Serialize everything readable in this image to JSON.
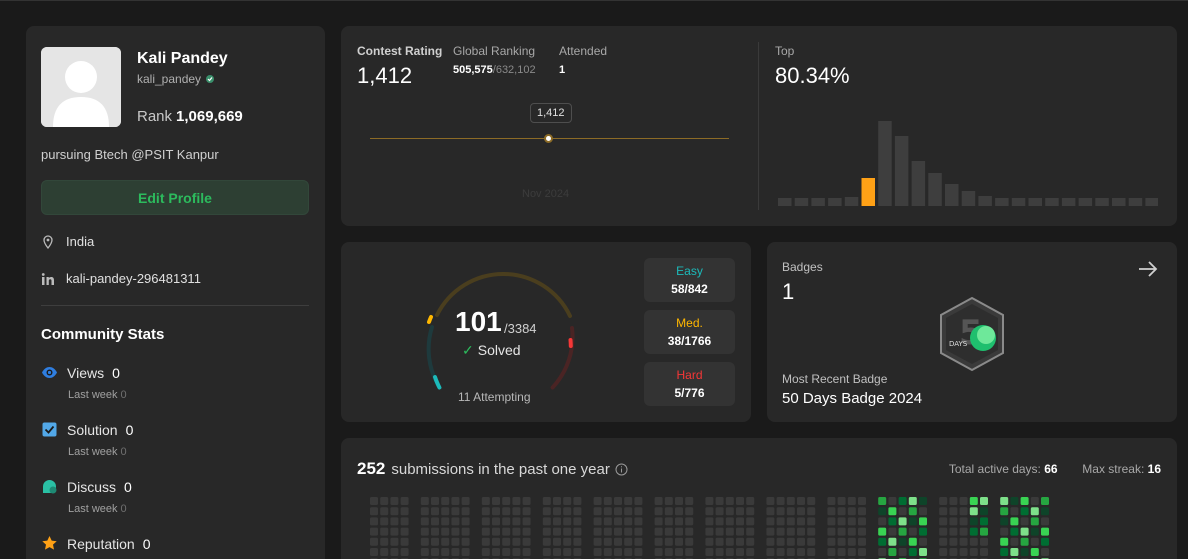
{
  "profile": {
    "name": "Kali Pandey",
    "handle": "kali_pandey",
    "rank_label": "Rank",
    "rank_value": "1,069,669",
    "bio": "pursuing Btech @PSIT Kanpur",
    "edit_label": "Edit Profile",
    "location": "India",
    "linkedin": "kali-pandey-296481311"
  },
  "community": {
    "title": "Community Stats",
    "items": [
      {
        "label": "Views",
        "value": "0",
        "sub_label": "Last week",
        "sub_value": "0"
      },
      {
        "label": "Solution",
        "value": "0",
        "sub_label": "Last week",
        "sub_value": "0"
      },
      {
        "label": "Discuss",
        "value": "0",
        "sub_label": "Last week",
        "sub_value": "0"
      },
      {
        "label": "Reputation",
        "value": "0"
      }
    ]
  },
  "contest": {
    "rating_label": "Contest Rating",
    "rating": "1,412",
    "ranking_label": "Global Ranking",
    "ranking": "505,575",
    "ranking_total": "/632,102",
    "attended_label": "Attended",
    "attended": "1",
    "tooltip": "1,412",
    "date": "Nov 2024",
    "top_label": "Top",
    "top": "80.34%",
    "histogram": [
      2,
      2,
      2,
      3,
      9,
      28,
      85,
      70,
      45,
      33,
      22,
      15,
      10,
      8,
      8,
      8,
      8,
      8,
      8,
      8,
      8,
      8,
      8
    ]
  },
  "solved": {
    "count": "101",
    "total": "/3384",
    "solved_label": "Solved",
    "attempting": "11 Attempting",
    "easy": {
      "label": "Easy",
      "value": "58/842",
      "color": "#1cbaba"
    },
    "medium": {
      "label": "Med.",
      "value": "38/1766",
      "color": "#ffb700"
    },
    "hard": {
      "label": "Hard",
      "value": "5/776",
      "color": "#f63737"
    }
  },
  "badges": {
    "label": "Badges",
    "count": "1",
    "recent_label": "Most Recent Badge",
    "recent": "50 Days Badge 2024",
    "badge_text": "DAYS"
  },
  "submissions": {
    "count": "252",
    "text": "submissions in the past one year",
    "active_label": "Total active days:",
    "active_value": "66",
    "streak_label": "Max streak:",
    "streak_value": "16"
  }
}
